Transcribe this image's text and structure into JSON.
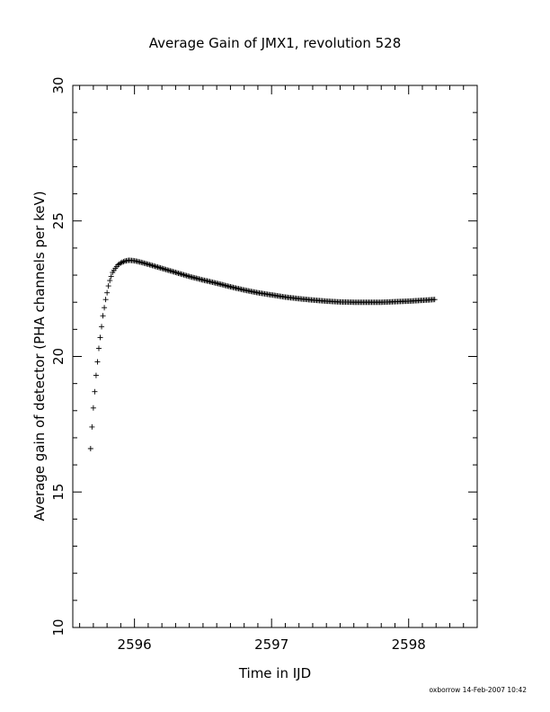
{
  "chart_data": {
    "type": "scatter",
    "title": "Average Gain of JMX1, revolution 528",
    "xlabel": "Time in IJD",
    "ylabel": "Average gain of detector (PHA channels per keV)",
    "xlim": [
      2595.55,
      2598.5
    ],
    "ylim": [
      10,
      30
    ],
    "x_ticks": [
      2596,
      2597,
      2598
    ],
    "x_tick_labels": [
      "2596",
      "2597",
      "2598"
    ],
    "y_ticks": [
      10,
      15,
      20,
      25,
      30
    ],
    "y_tick_labels": [
      "10",
      "15",
      "20",
      "25",
      "30"
    ],
    "x_minor_step": 0.1,
    "y_minor_step": 1,
    "marker": "plus",
    "grid": false,
    "series": [
      {
        "points": [
          [
            2595.68,
            16.6
          ],
          [
            2595.69,
            17.4
          ],
          [
            2595.7,
            18.1
          ],
          [
            2595.71,
            18.7
          ],
          [
            2595.72,
            19.3
          ],
          [
            2595.73,
            19.8
          ],
          [
            2595.74,
            20.3
          ],
          [
            2595.75,
            20.7
          ],
          [
            2595.76,
            21.1
          ],
          [
            2595.77,
            21.5
          ],
          [
            2595.78,
            21.8
          ],
          [
            2595.79,
            22.1
          ],
          [
            2595.8,
            22.35
          ],
          [
            2595.81,
            22.6
          ],
          [
            2595.82,
            22.8
          ],
          [
            2595.83,
            22.95
          ],
          [
            2595.84,
            23.1
          ],
          [
            2595.86,
            23.25
          ],
          [
            2595.88,
            23.38
          ],
          [
            2595.9,
            23.45
          ],
          [
            2595.93,
            23.52
          ],
          [
            2595.96,
            23.55
          ],
          [
            2596.0,
            23.53
          ],
          [
            2596.05,
            23.47
          ],
          [
            2596.1,
            23.4
          ],
          [
            2596.2,
            23.25
          ],
          [
            2596.3,
            23.1
          ],
          [
            2596.4,
            22.95
          ],
          [
            2596.5,
            22.82
          ],
          [
            2596.6,
            22.7
          ],
          [
            2596.7,
            22.57
          ],
          [
            2596.8,
            22.45
          ],
          [
            2596.9,
            22.35
          ],
          [
            2597.0,
            22.27
          ],
          [
            2597.1,
            22.19
          ],
          [
            2597.2,
            22.13
          ],
          [
            2597.3,
            22.08
          ],
          [
            2597.4,
            22.04
          ],
          [
            2597.5,
            22.01
          ],
          [
            2597.6,
            22.0
          ],
          [
            2597.7,
            22.0
          ],
          [
            2597.8,
            22.0
          ],
          [
            2597.9,
            22.02
          ],
          [
            2598.0,
            22.04
          ],
          [
            2598.1,
            22.07
          ],
          [
            2598.19,
            22.1
          ]
        ]
      }
    ]
  },
  "footer": {
    "stamp": "oxborrow 14-Feb-2007 10:42"
  }
}
